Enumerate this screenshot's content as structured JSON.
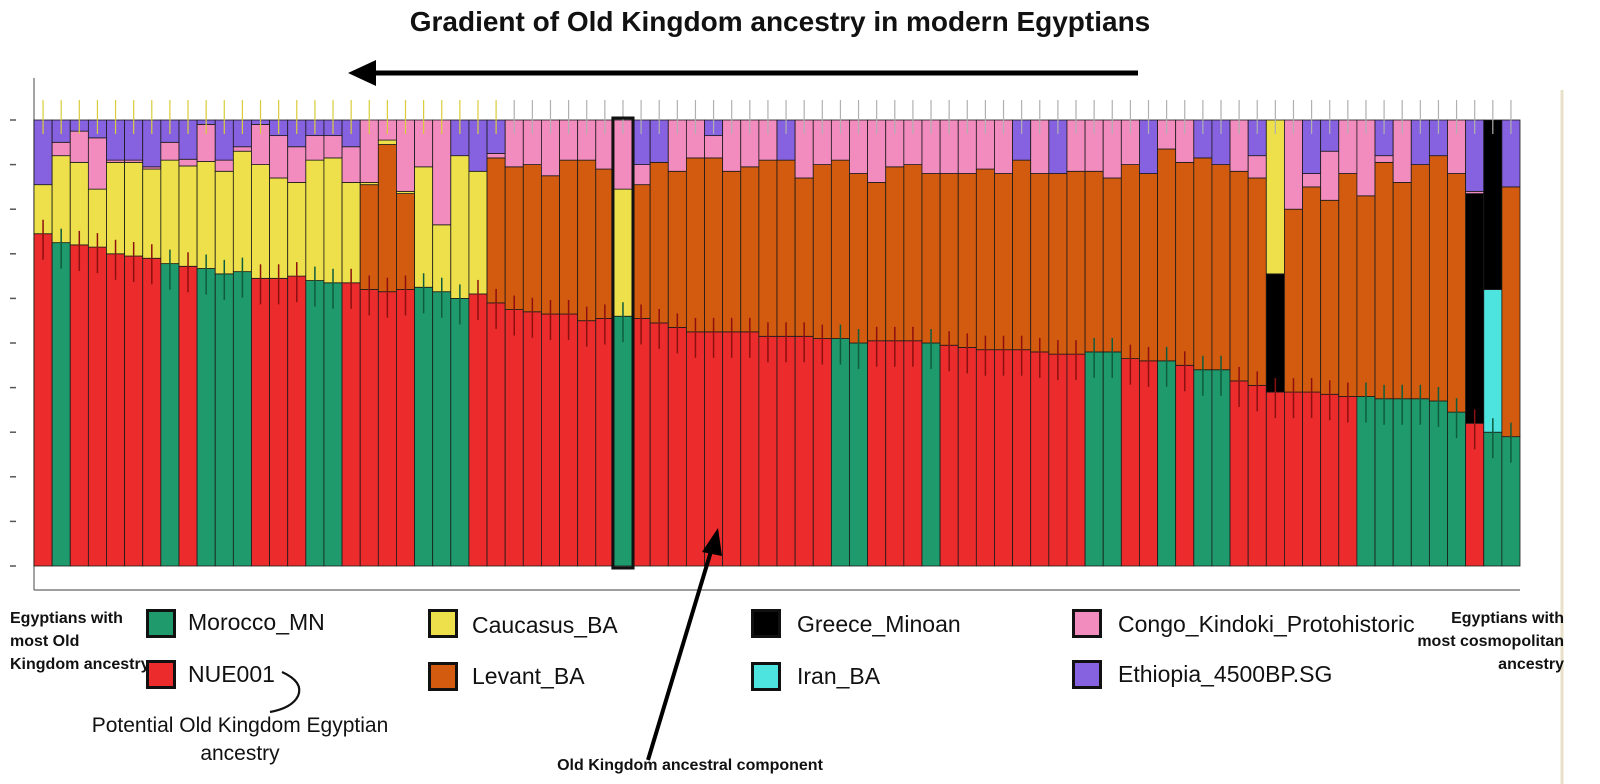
{
  "chart_data": {
    "type": "stacked-bar",
    "title": "Gradient of Old Kingdom ancestry in modern Egyptians",
    "ylim": [
      0,
      1
    ],
    "grid": false,
    "stack_order": [
      "Morocco_MN",
      "NUE001",
      "Iran_BA",
      "Levant_BA",
      "Greece_Minoan",
      "Caucasus_BA",
      "Congo_Kindoki_Protohistoric",
      "Ethiopia_4500BP.SG"
    ],
    "legend": [
      {
        "name": "Morocco_MN",
        "color": "#1f9a6c"
      },
      {
        "name": "NUE001",
        "color": "#ec2b2c"
      },
      {
        "name": "Caucasus_BA",
        "color": "#ede04a"
      },
      {
        "name": "Levant_BA",
        "color": "#d35b0f"
      },
      {
        "name": "Greece_Minoan",
        "color": "#000000"
      },
      {
        "name": "Iran_BA",
        "color": "#4de3de"
      },
      {
        "name": "Congo_Kindoki_Protohistoric",
        "color": "#f28cbf"
      },
      {
        "name": "Ethiopia_4500BP.SG",
        "color": "#8662e0"
      }
    ],
    "bars": [
      {
        "Morocco_MN": 0,
        "NUE001": 0.745,
        "Caucasus_BA": 0.11,
        "Congo_Kindoki_Protohistoric": 0,
        "Ethiopia_4500BP.SG": 0.145
      },
      {
        "Morocco_MN": 0.725,
        "NUE001": 0,
        "Caucasus_BA": 0.195,
        "Congo_Kindoki_Protohistoric": 0.03,
        "Ethiopia_4500BP.SG": 0.05
      },
      {
        "Morocco_MN": 0,
        "NUE001": 0.72,
        "Caucasus_BA": 0.185,
        "Congo_Kindoki_Protohistoric": 0.07,
        "Ethiopia_4500BP.SG": 0.025
      },
      {
        "Morocco_MN": 0,
        "NUE001": 0.715,
        "Caucasus_BA": 0.13,
        "Congo_Kindoki_Protohistoric": 0.115,
        "Ethiopia_4500BP.SG": 0.04
      },
      {
        "Morocco_MN": 0,
        "NUE001": 0.7,
        "Caucasus_BA": 0.205,
        "Congo_Kindoki_Protohistoric": 0.005,
        "Ethiopia_4500BP.SG": 0.09
      },
      {
        "Morocco_MN": 0,
        "NUE001": 0.695,
        "Caucasus_BA": 0.21,
        "Congo_Kindoki_Protohistoric": 0.005,
        "Ethiopia_4500BP.SG": 0.09
      },
      {
        "Morocco_MN": 0,
        "NUE001": 0.69,
        "Caucasus_BA": 0.2,
        "Congo_Kindoki_Protohistoric": 0.005,
        "Ethiopia_4500BP.SG": 0.105
      },
      {
        "Morocco_MN": 0.678,
        "NUE001": 0,
        "Caucasus_BA": 0.232,
        "Congo_Kindoki_Protohistoric": 0.04,
        "Ethiopia_4500BP.SG": 0.05
      },
      {
        "Morocco_MN": 0,
        "NUE001": 0.672,
        "Caucasus_BA": 0.225,
        "Congo_Kindoki_Protohistoric": 0.015,
        "Ethiopia_4500BP.SG": 0.088
      },
      {
        "Morocco_MN": 0.667,
        "NUE001": 0,
        "Caucasus_BA": 0.24,
        "Congo_Kindoki_Protohistoric": 0.083,
        "Ethiopia_4500BP.SG": 0.01
      },
      {
        "Morocco_MN": 0.655,
        "NUE001": 0,
        "Caucasus_BA": 0.23,
        "Congo_Kindoki_Protohistoric": 0.025,
        "Ethiopia_4500BP.SG": 0.09
      },
      {
        "Morocco_MN": 0.66,
        "NUE001": 0,
        "Caucasus_BA": 0.27,
        "Congo_Kindoki_Protohistoric": 0.01,
        "Ethiopia_4500BP.SG": 0.06
      },
      {
        "Morocco_MN": 0,
        "NUE001": 0.645,
        "Caucasus_BA": 0.255,
        "Congo_Kindoki_Protohistoric": 0.09,
        "Ethiopia_4500BP.SG": 0.01
      },
      {
        "Morocco_MN": 0,
        "NUE001": 0.645,
        "Caucasus_BA": 0.225,
        "Congo_Kindoki_Protohistoric": 0.095,
        "Ethiopia_4500BP.SG": 0.035
      },
      {
        "Morocco_MN": 0,
        "NUE001": 0.65,
        "Caucasus_BA": 0.21,
        "Congo_Kindoki_Protohistoric": 0.08,
        "Ethiopia_4500BP.SG": 0.06
      },
      {
        "Morocco_MN": 0.64,
        "NUE001": 0,
        "Caucasus_BA": 0.27,
        "Congo_Kindoki_Protohistoric": 0.055,
        "Ethiopia_4500BP.SG": 0.035
      },
      {
        "Morocco_MN": 0.635,
        "NUE001": 0,
        "Caucasus_BA": 0.28,
        "Congo_Kindoki_Protohistoric": 0.05,
        "Ethiopia_4500BP.SG": 0.035
      },
      {
        "Morocco_MN": 0,
        "NUE001": 0.635,
        "Caucasus_BA": 0.225,
        "Congo_Kindoki_Protohistoric": 0.08,
        "Ethiopia_4500BP.SG": 0.06
      },
      {
        "Morocco_MN": 0,
        "NUE001": 0.62,
        "Caucasus_BA": 0.005,
        "Levant_BA": 0.235,
        "Congo_Kindoki_Protohistoric": 0.14,
        "Ethiopia_4500BP.SG": 0
      },
      {
        "Morocco_MN": 0,
        "NUE001": 0.615,
        "Caucasus_BA": 0.01,
        "Levant_BA": 0.33,
        "Congo_Kindoki_Protohistoric": 0.045,
        "Ethiopia_4500BP.SG": 0
      },
      {
        "Morocco_MN": 0,
        "NUE001": 0.62,
        "Caucasus_BA": 0.005,
        "Levant_BA": 0.215,
        "Congo_Kindoki_Protohistoric": 0.16,
        "Ethiopia_4500BP.SG": 0
      },
      {
        "Morocco_MN": 0.625,
        "NUE001": 0,
        "Caucasus_BA": 0.27,
        "Congo_Kindoki_Protohistoric": 0.105,
        "Ethiopia_4500BP.SG": 0
      },
      {
        "Morocco_MN": 0.615,
        "NUE001": 0,
        "Caucasus_BA": 0.15,
        "Congo_Kindoki_Protohistoric": 0.235,
        "Ethiopia_4500BP.SG": 0
      },
      {
        "Morocco_MN": 0.6,
        "NUE001": 0,
        "Caucasus_BA": 0.32,
        "Congo_Kindoki_Protohistoric": 0,
        "Ethiopia_4500BP.SG": 0.08
      },
      {
        "Morocco_MN": 0,
        "NUE001": 0.61,
        "Caucasus_BA": 0.275,
        "Congo_Kindoki_Protohistoric": 0,
        "Ethiopia_4500BP.SG": 0.115
      },
      {
        "Morocco_MN": 0,
        "NUE001": 0.59,
        "Levant_BA": 0.325,
        "Congo_Kindoki_Protohistoric": 0.01,
        "Ethiopia_4500BP.SG": 0.075
      },
      {
        "Morocco_MN": 0,
        "NUE001": 0.575,
        "Levant_BA": 0.32,
        "Congo_Kindoki_Protohistoric": 0.105,
        "Ethiopia_4500BP.SG": 0
      },
      {
        "Morocco_MN": 0,
        "NUE001": 0.57,
        "Levant_BA": 0.33,
        "Congo_Kindoki_Protohistoric": 0.1,
        "Ethiopia_4500BP.SG": 0
      },
      {
        "Morocco_MN": 0,
        "NUE001": 0.565,
        "Levant_BA": 0.31,
        "Congo_Kindoki_Protohistoric": 0.125,
        "Ethiopia_4500BP.SG": 0
      },
      {
        "Morocco_MN": 0,
        "NUE001": 0.565,
        "Levant_BA": 0.345,
        "Congo_Kindoki_Protohistoric": 0.09,
        "Ethiopia_4500BP.SG": 0
      },
      {
        "Morocco_MN": 0,
        "NUE001": 0.55,
        "Levant_BA": 0.36,
        "Congo_Kindoki_Protohistoric": 0.09,
        "Ethiopia_4500BP.SG": 0
      },
      {
        "Morocco_MN": 0,
        "NUE001": 0.555,
        "Levant_BA": 0.335,
        "Congo_Kindoki_Protohistoric": 0.11,
        "Ethiopia_4500BP.SG": 0
      },
      {
        "Morocco_MN": 0.56,
        "NUE001": 0,
        "Caucasus_BA": 0.285,
        "Congo_Kindoki_Protohistoric": 0.155,
        "Ethiopia_4500BP.SG": 0
      },
      {
        "Morocco_MN": 0,
        "NUE001": 0.555,
        "Levant_BA": 0.3,
        "Congo_Kindoki_Protohistoric": 0.045,
        "Ethiopia_4500BP.SG": 0.1
      },
      {
        "Morocco_MN": 0,
        "NUE001": 0.545,
        "Levant_BA": 0.36,
        "Congo_Kindoki_Protohistoric": 0,
        "Ethiopia_4500BP.SG": 0.095
      },
      {
        "Morocco_MN": 0,
        "NUE001": 0.535,
        "Levant_BA": 0.35,
        "Congo_Kindoki_Protohistoric": 0.115,
        "Ethiopia_4500BP.SG": 0
      },
      {
        "Morocco_MN": 0,
        "NUE001": 0.525,
        "Levant_BA": 0.39,
        "Congo_Kindoki_Protohistoric": 0.085,
        "Ethiopia_4500BP.SG": 0
      },
      {
        "Morocco_MN": 0,
        "NUE001": 0.525,
        "Levant_BA": 0.39,
        "Congo_Kindoki_Protohistoric": 0.05,
        "Ethiopia_4500BP.SG": 0.035
      },
      {
        "Morocco_MN": 0,
        "NUE001": 0.525,
        "Levant_BA": 0.36,
        "Congo_Kindoki_Protohistoric": 0.115,
        "Ethiopia_4500BP.SG": 0
      },
      {
        "Morocco_MN": 0,
        "NUE001": 0.525,
        "Levant_BA": 0.37,
        "Congo_Kindoki_Protohistoric": 0.105,
        "Ethiopia_4500BP.SG": 0
      },
      {
        "Morocco_MN": 0,
        "NUE001": 0.515,
        "Levant_BA": 0.395,
        "Congo_Kindoki_Protohistoric": 0.09,
        "Ethiopia_4500BP.SG": 0
      },
      {
        "Morocco_MN": 0,
        "NUE001": 0.515,
        "Levant_BA": 0.395,
        "Congo_Kindoki_Protohistoric": 0,
        "Ethiopia_4500BP.SG": 0.09
      },
      {
        "Morocco_MN": 0,
        "NUE001": 0.515,
        "Levant_BA": 0.355,
        "Congo_Kindoki_Protohistoric": 0.13,
        "Ethiopia_4500BP.SG": 0
      },
      {
        "Morocco_MN": 0,
        "NUE001": 0.51,
        "Levant_BA": 0.39,
        "Congo_Kindoki_Protohistoric": 0.1,
        "Ethiopia_4500BP.SG": 0
      },
      {
        "Morocco_MN": 0.51,
        "NUE001": 0,
        "Levant_BA": 0.4,
        "Congo_Kindoki_Protohistoric": 0.09,
        "Ethiopia_4500BP.SG": 0
      },
      {
        "Morocco_MN": 0.5,
        "NUE001": 0,
        "Levant_BA": 0.38,
        "Congo_Kindoki_Protohistoric": 0.12,
        "Ethiopia_4500BP.SG": 0
      },
      {
        "Morocco_MN": 0,
        "NUE001": 0.505,
        "Levant_BA": 0.355,
        "Congo_Kindoki_Protohistoric": 0.14,
        "Ethiopia_4500BP.SG": 0
      },
      {
        "Morocco_MN": 0,
        "NUE001": 0.505,
        "Levant_BA": 0.39,
        "Congo_Kindoki_Protohistoric": 0.105,
        "Ethiopia_4500BP.SG": 0
      },
      {
        "Morocco_MN": 0,
        "NUE001": 0.505,
        "Levant_BA": 0.395,
        "Congo_Kindoki_Protohistoric": 0.1,
        "Ethiopia_4500BP.SG": 0
      },
      {
        "Morocco_MN": 0.5,
        "NUE001": 0,
        "Levant_BA": 0.38,
        "Congo_Kindoki_Protohistoric": 0.12,
        "Ethiopia_4500BP.SG": 0
      },
      {
        "Morocco_MN": 0,
        "NUE001": 0.495,
        "Levant_BA": 0.385,
        "Congo_Kindoki_Protohistoric": 0.12,
        "Ethiopia_4500BP.SG": 0
      },
      {
        "Morocco_MN": 0,
        "NUE001": 0.49,
        "Levant_BA": 0.39,
        "Congo_Kindoki_Protohistoric": 0.12,
        "Ethiopia_4500BP.SG": 0
      },
      {
        "Morocco_MN": 0,
        "NUE001": 0.485,
        "Levant_BA": 0.405,
        "Congo_Kindoki_Protohistoric": 0.11,
        "Ethiopia_4500BP.SG": 0
      },
      {
        "Morocco_MN": 0,
        "NUE001": 0.485,
        "Levant_BA": 0.395,
        "Congo_Kindoki_Protohistoric": 0.12,
        "Ethiopia_4500BP.SG": 0
      },
      {
        "Morocco_MN": 0,
        "NUE001": 0.485,
        "Levant_BA": 0.425,
        "Congo_Kindoki_Protohistoric": 0,
        "Ethiopia_4500BP.SG": 0.09
      },
      {
        "Morocco_MN": 0,
        "NUE001": 0.48,
        "Levant_BA": 0.4,
        "Congo_Kindoki_Protohistoric": 0.12,
        "Ethiopia_4500BP.SG": 0
      },
      {
        "Morocco_MN": 0,
        "NUE001": 0.475,
        "Levant_BA": 0.405,
        "Congo_Kindoki_Protohistoric": 0,
        "Ethiopia_4500BP.SG": 0.12
      },
      {
        "Morocco_MN": 0,
        "NUE001": 0.475,
        "Levant_BA": 0.41,
        "Congo_Kindoki_Protohistoric": 0.115,
        "Ethiopia_4500BP.SG": 0
      },
      {
        "Morocco_MN": 0.48,
        "NUE001": 0,
        "Levant_BA": 0.405,
        "Congo_Kindoki_Protohistoric": 0.115,
        "Ethiopia_4500BP.SG": 0
      },
      {
        "Morocco_MN": 0.48,
        "NUE001": 0,
        "Levant_BA": 0.39,
        "Congo_Kindoki_Protohistoric": 0.13,
        "Ethiopia_4500BP.SG": 0
      },
      {
        "Morocco_MN": 0,
        "NUE001": 0.465,
        "Levant_BA": 0.435,
        "Congo_Kindoki_Protohistoric": 0.1,
        "Ethiopia_4500BP.SG": 0
      },
      {
        "Morocco_MN": 0,
        "NUE001": 0.46,
        "Levant_BA": 0.42,
        "Congo_Kindoki_Protohistoric": 0,
        "Ethiopia_4500BP.SG": 0.12
      },
      {
        "Morocco_MN": 0.46,
        "NUE001": 0,
        "Levant_BA": 0.475,
        "Congo_Kindoki_Protohistoric": 0.065,
        "Ethiopia_4500BP.SG": 0
      },
      {
        "Morocco_MN": 0,
        "NUE001": 0.45,
        "Levant_BA": 0.455,
        "Congo_Kindoki_Protohistoric": 0.095,
        "Ethiopia_4500BP.SG": 0
      },
      {
        "Morocco_MN": 0.44,
        "NUE001": 0,
        "Levant_BA": 0.475,
        "Congo_Kindoki_Protohistoric": 0,
        "Ethiopia_4500BP.SG": 0.085
      },
      {
        "Morocco_MN": 0.44,
        "NUE001": 0,
        "Levant_BA": 0.46,
        "Congo_Kindoki_Protohistoric": 0,
        "Ethiopia_4500BP.SG": 0.1
      },
      {
        "Morocco_MN": 0,
        "NUE001": 0.415,
        "Levant_BA": 0.47,
        "Congo_Kindoki_Protohistoric": 0.115,
        "Ethiopia_4500BP.SG": 0
      },
      {
        "Morocco_MN": 0,
        "NUE001": 0.405,
        "Levant_BA": 0.465,
        "Congo_Kindoki_Protohistoric": 0.05,
        "Ethiopia_4500BP.SG": 0.08
      },
      {
        "Morocco_MN": 0,
        "NUE001": 0.39,
        "Greece_Minoan": 0.265,
        "Caucasus_BA": 0.345,
        "Congo_Kindoki_Protohistoric": 0,
        "Ethiopia_4500BP.SG": 0
      },
      {
        "Morocco_MN": 0,
        "NUE001": 0.39,
        "Levant_BA": 0.41,
        "Congo_Kindoki_Protohistoric": 0.2,
        "Ethiopia_4500BP.SG": 0
      },
      {
        "Morocco_MN": 0,
        "NUE001": 0.39,
        "Levant_BA": 0.46,
        "Congo_Kindoki_Protohistoric": 0.03,
        "Ethiopia_4500BP.SG": 0.12
      },
      {
        "Morocco_MN": 0,
        "NUE001": 0.385,
        "Levant_BA": 0.435,
        "Congo_Kindoki_Protohistoric": 0.11,
        "Ethiopia_4500BP.SG": 0.07
      },
      {
        "Morocco_MN": 0,
        "NUE001": 0.38,
        "Levant_BA": 0.5,
        "Congo_Kindoki_Protohistoric": 0.12,
        "Ethiopia_4500BP.SG": 0
      },
      {
        "Morocco_MN": 0.38,
        "NUE001": 0,
        "Levant_BA": 0.45,
        "Congo_Kindoki_Protohistoric": 0.17,
        "Ethiopia_4500BP.SG": 0
      },
      {
        "Morocco_MN": 0.375,
        "NUE001": 0,
        "Levant_BA": 0.53,
        "Congo_Kindoki_Protohistoric": 0.015,
        "Ethiopia_4500BP.SG": 0.08
      },
      {
        "Morocco_MN": 0.375,
        "NUE001": 0,
        "Levant_BA": 0.485,
        "Congo_Kindoki_Protohistoric": 0.14,
        "Ethiopia_4500BP.SG": 0
      },
      {
        "Morocco_MN": 0.375,
        "NUE001": 0,
        "Levant_BA": 0.525,
        "Congo_Kindoki_Protohistoric": 0,
        "Ethiopia_4500BP.SG": 0.1
      },
      {
        "Morocco_MN": 0.37,
        "NUE001": 0,
        "Levant_BA": 0.55,
        "Congo_Kindoki_Protohistoric": 0,
        "Ethiopia_4500BP.SG": 0.08
      },
      {
        "Morocco_MN": 0.345,
        "NUE001": 0,
        "Levant_BA": 0.535,
        "Congo_Kindoki_Protohistoric": 0.12,
        "Ethiopia_4500BP.SG": 0
      },
      {
        "Morocco_MN": 0,
        "NUE001": 0.32,
        "Greece_Minoan": 0.515,
        "Congo_Kindoki_Protohistoric": 0.005,
        "Ethiopia_4500BP.SG": 0.16
      },
      {
        "Morocco_MN": 0.3,
        "NUE001": 0,
        "Iran_BA": 0.32,
        "Greece_Minoan": 0.38,
        "Congo_Kindoki_Protohistoric": 0,
        "Ethiopia_4500BP.SG": 0
      },
      {
        "Morocco_MN": 0.29,
        "NUE001": 0,
        "Levant_BA": 0.56,
        "Congo_Kindoki_Protohistoric": 0,
        "Ethiopia_4500BP.SG": 0.15
      }
    ],
    "highlighted_bar_index": 32,
    "arrow_direction": "left"
  },
  "legend_entries": [
    {
      "label": "Morocco_MN",
      "color": "#1f9a6c"
    },
    {
      "label": "NUE001",
      "color": "#ec2b2c"
    },
    {
      "label": "Caucasus_BA",
      "color": "#ede04a"
    },
    {
      "label": "Levant_BA",
      "color": "#d35b0f"
    },
    {
      "label": "Greece_Minoan",
      "color": "#000000"
    },
    {
      "label": "Iran_BA",
      "color": "#4de3de"
    },
    {
      "label": "Congo_Kindoki_Protohistoric",
      "color": "#f28cbf"
    },
    {
      "label": "Ethiopia_4500BP.SG",
      "color": "#8662e0"
    }
  ],
  "annotations": {
    "left_note": "Egyptians with most Old Kingdom ancestry",
    "right_note": "Egyptians with most cosmopolitan ancestry",
    "ancestry_caption": "Potential Old Kingdom Egyptian ancestry",
    "component_caption": "Old Kingdom ancestral component"
  }
}
